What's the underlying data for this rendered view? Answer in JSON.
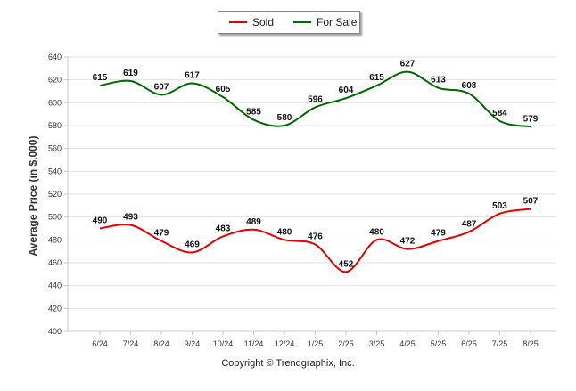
{
  "chart_data": {
    "type": "line",
    "categories": [
      "6/24",
      "7/24",
      "8/24",
      "9/24",
      "10/24",
      "11/24",
      "12/24",
      "1/25",
      "2/25",
      "3/25",
      "4/25",
      "5/25",
      "6/25",
      "7/25",
      "8/25"
    ],
    "series": [
      {
        "name": "Sold",
        "color": "#e00000",
        "values": [
          490,
          493,
          479,
          469,
          483,
          489,
          480,
          476,
          452,
          480,
          472,
          479,
          487,
          503,
          507
        ]
      },
      {
        "name": "For Sale",
        "color": "#006600",
        "values": [
          615,
          619,
          607,
          617,
          605,
          585,
          580,
          596,
          604,
          615,
          627,
          613,
          608,
          584,
          579
        ]
      }
    ],
    "ylabel": "Average Price (in $,000)",
    "ylim": [
      400,
      640
    ],
    "yticks": [
      400,
      420,
      440,
      460,
      480,
      500,
      520,
      540,
      560,
      580,
      600,
      620,
      640
    ],
    "grid": true,
    "legend_position": "top-center"
  },
  "legend": {
    "sold_label": "Sold",
    "for_sale_label": "For Sale"
  },
  "footer": {
    "copyright": "Copyright © Trendgraphix, Inc."
  }
}
